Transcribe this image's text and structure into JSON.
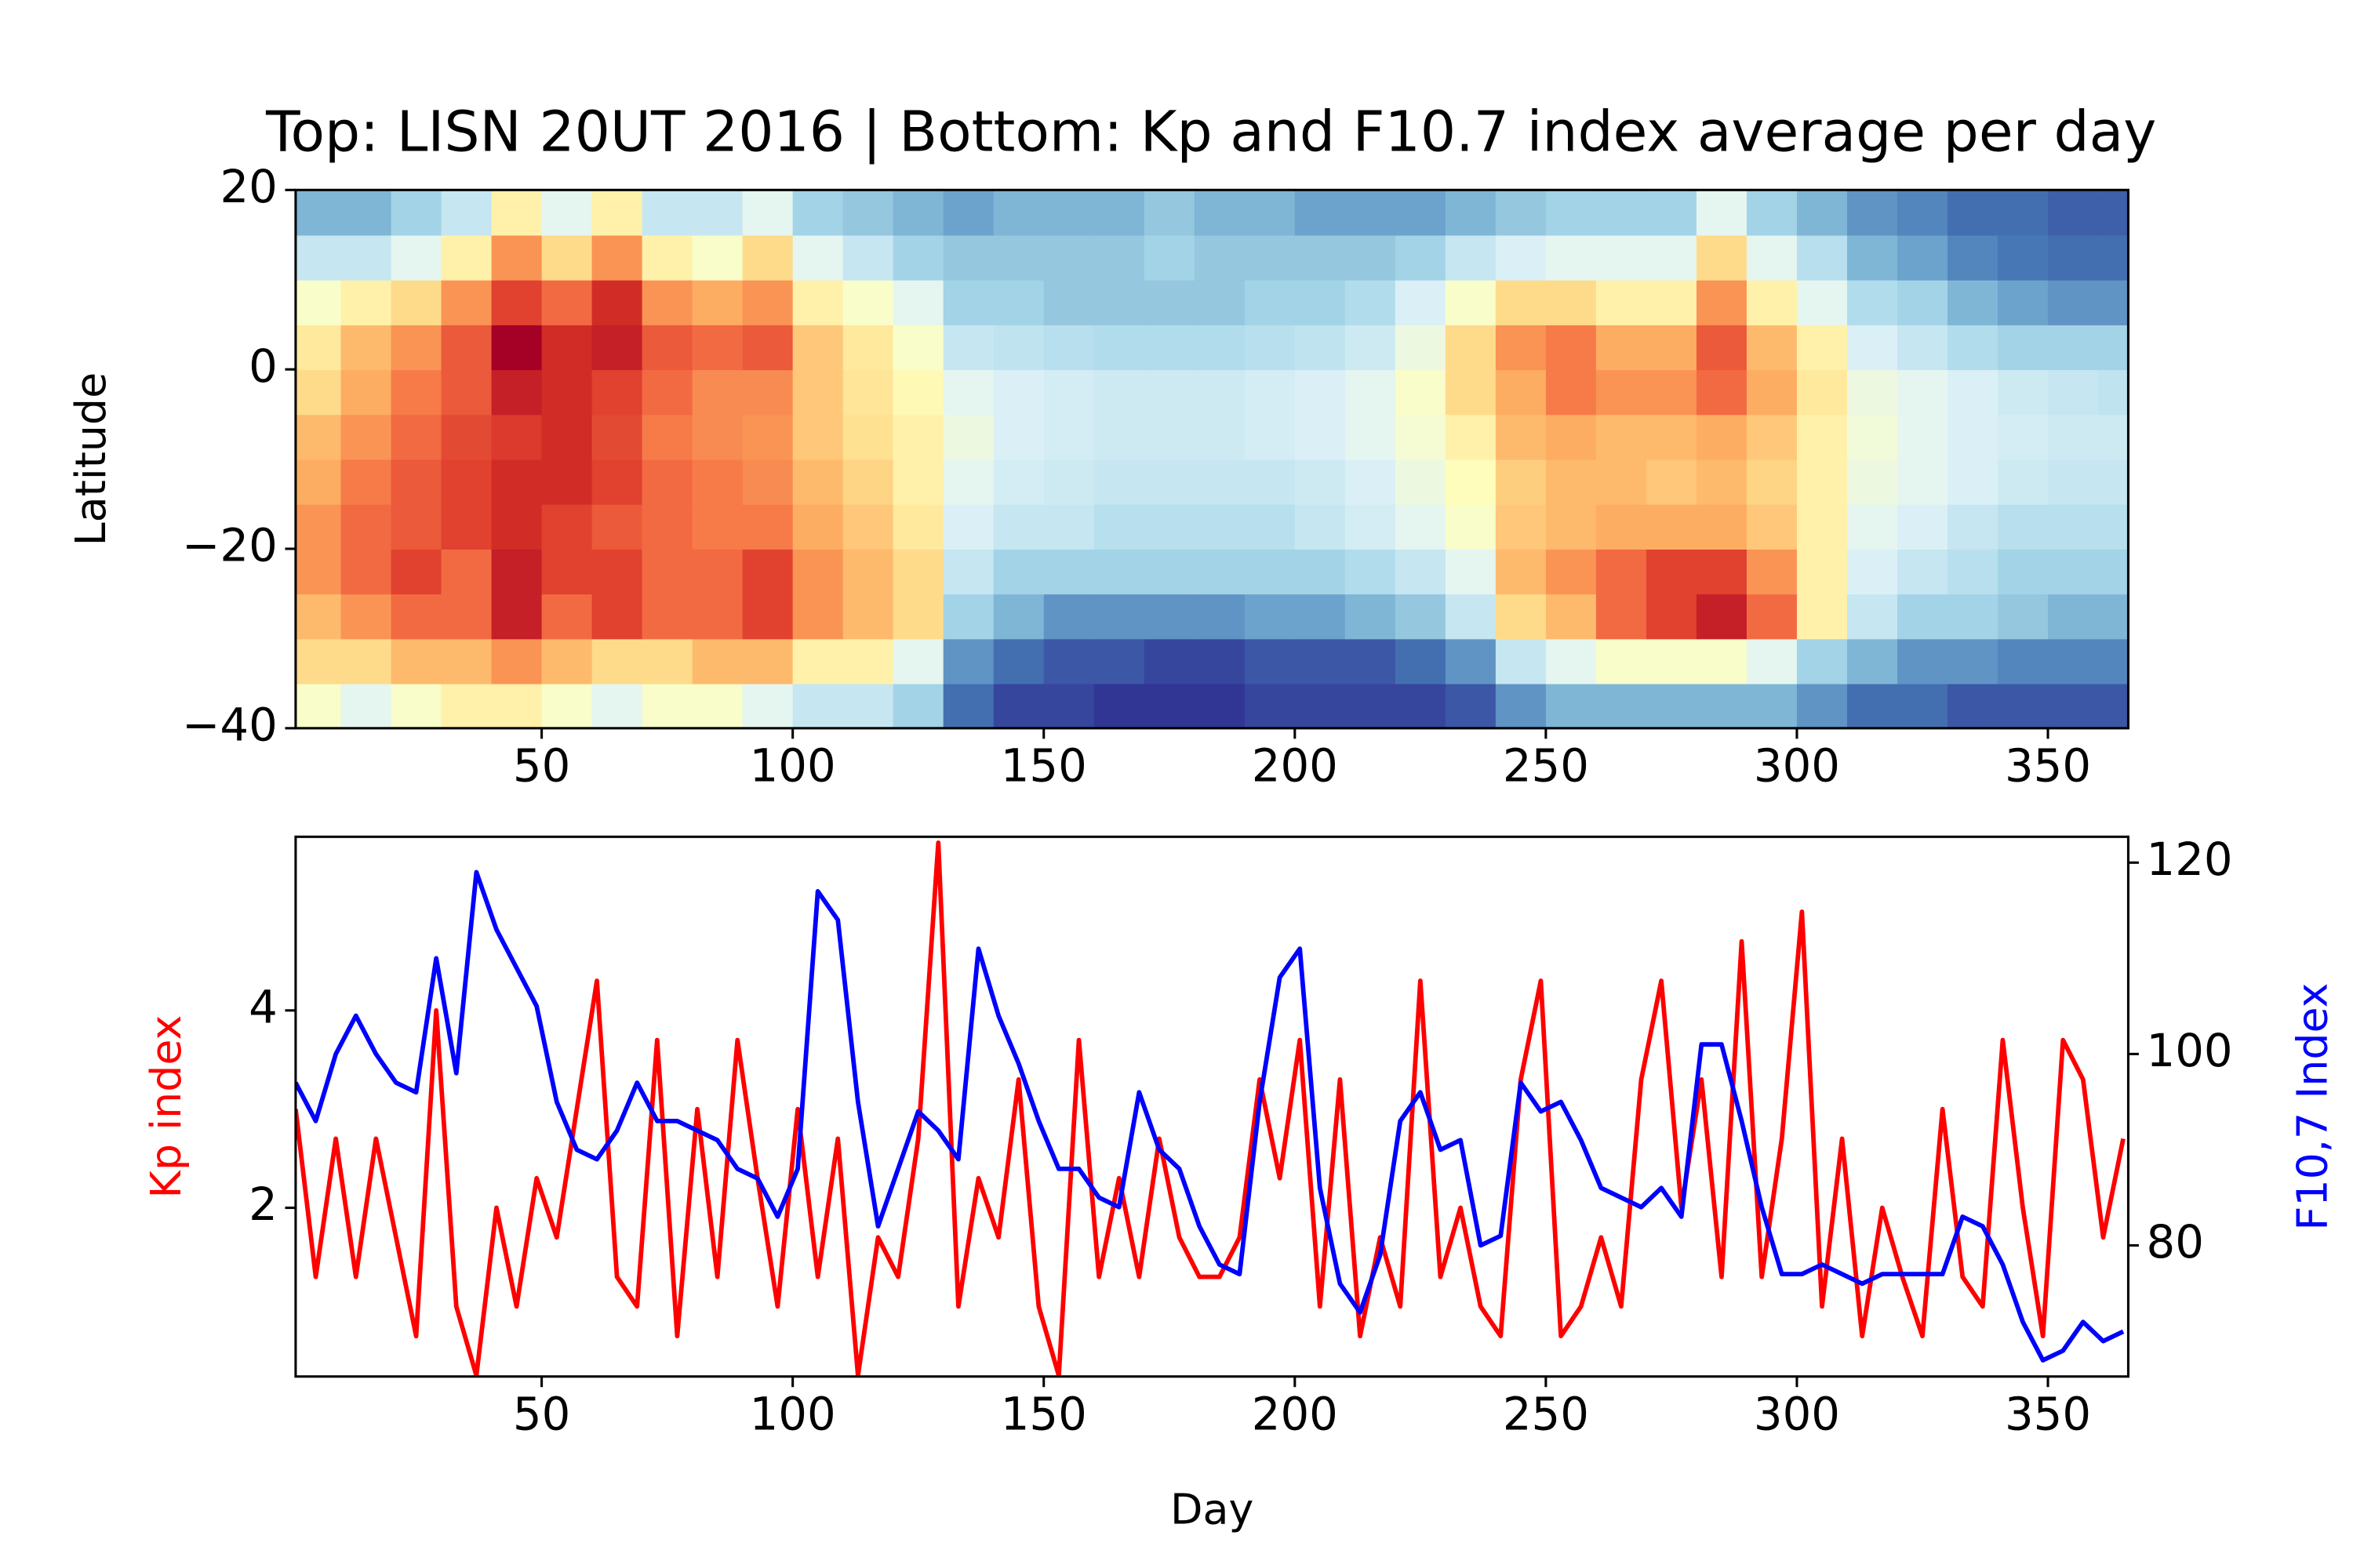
{
  "chart_data": [
    {
      "type": "heatmap",
      "title": "Top: LISN 20UT 2016 | Bottom: Kp and F10.7 index average per day",
      "y_label": "Latitude",
      "x": [
        5,
        15,
        25,
        35,
        45,
        55,
        65,
        75,
        85,
        95,
        105,
        115,
        125,
        135,
        145,
        155,
        165,
        175,
        185,
        195,
        205,
        215,
        225,
        235,
        245,
        255,
        265,
        275,
        285,
        295,
        305,
        315,
        325,
        335,
        345,
        355,
        365
      ],
      "y": [
        -37.5,
        -32.5,
        -27.5,
        -22.5,
        -17.5,
        -12.5,
        -7.5,
        -2.5,
        2.5,
        7.5,
        12.5,
        17.5
      ],
      "z": [
        [
          0.45,
          0.4,
          0.45,
          0.5,
          0.5,
          0.45,
          0.4,
          0.45,
          0.45,
          0.4,
          0.35,
          0.35,
          0.3,
          0.15,
          0.1,
          0.1,
          0.08,
          0.08,
          0.08,
          0.1,
          0.1,
          0.1,
          0.1,
          0.12,
          0.2,
          0.25,
          0.25,
          0.25,
          0.25,
          0.25,
          0.2,
          0.15,
          0.15,
          0.12,
          0.12,
          0.12,
          0.12
        ],
        [
          0.55,
          0.55,
          0.6,
          0.6,
          0.65,
          0.6,
          0.55,
          0.55,
          0.6,
          0.6,
          0.5,
          0.5,
          0.4,
          0.2,
          0.15,
          0.12,
          0.12,
          0.1,
          0.1,
          0.12,
          0.12,
          0.12,
          0.15,
          0.2,
          0.35,
          0.4,
          0.45,
          0.45,
          0.45,
          0.4,
          0.3,
          0.25,
          0.2,
          0.2,
          0.18,
          0.18,
          0.18
        ],
        [
          0.6,
          0.65,
          0.7,
          0.7,
          0.8,
          0.7,
          0.75,
          0.7,
          0.7,
          0.75,
          0.65,
          0.6,
          0.55,
          0.3,
          0.25,
          0.2,
          0.2,
          0.2,
          0.2,
          0.22,
          0.22,
          0.25,
          0.28,
          0.35,
          0.55,
          0.6,
          0.7,
          0.75,
          0.8,
          0.7,
          0.5,
          0.35,
          0.3,
          0.3,
          0.28,
          0.25,
          0.25
        ],
        [
          0.65,
          0.7,
          0.75,
          0.7,
          0.8,
          0.75,
          0.75,
          0.7,
          0.7,
          0.75,
          0.65,
          0.6,
          0.55,
          0.35,
          0.3,
          0.3,
          0.3,
          0.3,
          0.3,
          0.3,
          0.3,
          0.32,
          0.35,
          0.4,
          0.6,
          0.65,
          0.7,
          0.75,
          0.75,
          0.65,
          0.5,
          0.38,
          0.35,
          0.33,
          0.3,
          0.3,
          0.3
        ],
        [
          0.65,
          0.7,
          0.72,
          0.75,
          0.78,
          0.75,
          0.72,
          0.7,
          0.68,
          0.68,
          0.62,
          0.58,
          0.52,
          0.38,
          0.35,
          0.35,
          0.33,
          0.33,
          0.33,
          0.33,
          0.35,
          0.37,
          0.4,
          0.45,
          0.58,
          0.6,
          0.62,
          0.62,
          0.62,
          0.58,
          0.5,
          0.4,
          0.38,
          0.35,
          0.33,
          0.33,
          0.33
        ],
        [
          0.62,
          0.68,
          0.72,
          0.75,
          0.78,
          0.78,
          0.75,
          0.7,
          0.68,
          0.66,
          0.6,
          0.56,
          0.5,
          0.4,
          0.37,
          0.36,
          0.35,
          0.35,
          0.35,
          0.35,
          0.36,
          0.38,
          0.42,
          0.47,
          0.57,
          0.6,
          0.6,
          0.58,
          0.6,
          0.56,
          0.5,
          0.42,
          0.4,
          0.38,
          0.36,
          0.35,
          0.35
        ],
        [
          0.6,
          0.65,
          0.7,
          0.74,
          0.76,
          0.78,
          0.74,
          0.68,
          0.66,
          0.65,
          0.58,
          0.54,
          0.5,
          0.42,
          0.38,
          0.37,
          0.36,
          0.36,
          0.36,
          0.37,
          0.38,
          0.4,
          0.44,
          0.5,
          0.6,
          0.62,
          0.6,
          0.6,
          0.62,
          0.58,
          0.5,
          0.43,
          0.4,
          0.38,
          0.37,
          0.36,
          0.36
        ],
        [
          0.55,
          0.62,
          0.68,
          0.72,
          0.8,
          0.78,
          0.75,
          0.7,
          0.66,
          0.66,
          0.58,
          0.53,
          0.48,
          0.4,
          0.38,
          0.37,
          0.36,
          0.36,
          0.36,
          0.37,
          0.38,
          0.4,
          0.45,
          0.55,
          0.62,
          0.68,
          0.65,
          0.65,
          0.7,
          0.62,
          0.52,
          0.42,
          0.4,
          0.38,
          0.36,
          0.35,
          0.34
        ],
        [
          0.52,
          0.6,
          0.65,
          0.72,
          0.85,
          0.78,
          0.8,
          0.72,
          0.7,
          0.72,
          0.58,
          0.52,
          0.45,
          0.35,
          0.34,
          0.33,
          0.32,
          0.32,
          0.32,
          0.33,
          0.34,
          0.36,
          0.42,
          0.55,
          0.65,
          0.68,
          0.62,
          0.62,
          0.72,
          0.6,
          0.5,
          0.38,
          0.35,
          0.32,
          0.3,
          0.3,
          0.3
        ],
        [
          0.45,
          0.5,
          0.55,
          0.65,
          0.75,
          0.7,
          0.78,
          0.65,
          0.62,
          0.65,
          0.5,
          0.45,
          0.4,
          0.3,
          0.3,
          0.28,
          0.28,
          0.28,
          0.28,
          0.3,
          0.3,
          0.32,
          0.38,
          0.45,
          0.55,
          0.55,
          0.5,
          0.5,
          0.65,
          0.5,
          0.4,
          0.32,
          0.3,
          0.25,
          0.22,
          0.2,
          0.2
        ],
        [
          0.35,
          0.35,
          0.4,
          0.5,
          0.65,
          0.55,
          0.65,
          0.5,
          0.45,
          0.55,
          0.4,
          0.35,
          0.3,
          0.28,
          0.28,
          0.28,
          0.28,
          0.3,
          0.28,
          0.28,
          0.28,
          0.28,
          0.3,
          0.35,
          0.38,
          0.4,
          0.4,
          0.4,
          0.55,
          0.4,
          0.33,
          0.25,
          0.22,
          0.18,
          0.16,
          0.15,
          0.15
        ],
        [
          0.25,
          0.25,
          0.3,
          0.35,
          0.5,
          0.4,
          0.5,
          0.35,
          0.35,
          0.4,
          0.3,
          0.28,
          0.25,
          0.22,
          0.25,
          0.25,
          0.25,
          0.28,
          0.25,
          0.25,
          0.22,
          0.22,
          0.22,
          0.25,
          0.28,
          0.3,
          0.3,
          0.3,
          0.4,
          0.3,
          0.25,
          0.2,
          0.18,
          0.15,
          0.15,
          0.13,
          0.13
        ]
      ],
      "colormap": [
        "#313695",
        "#4575b4",
        "#74add1",
        "#abd9e9",
        "#e0f3f8",
        "#ffffbf",
        "#fee090",
        "#fdae61",
        "#f46d43",
        "#d73027",
        "#a50026"
      ],
      "xlim": [
        1,
        366
      ],
      "ylim": [
        -40,
        20
      ],
      "xticks": [
        50,
        100,
        150,
        200,
        250,
        300,
        350
      ],
      "yticks": [
        {
          "value": -40,
          "label": "−40"
        },
        {
          "value": -20,
          "label": "−20"
        },
        0,
        20
      ]
    },
    {
      "type": "line",
      "x_label": "Day",
      "y_label": "Kp index",
      "y2_label": "F10,7 Index",
      "y_label_color": "#ff0000",
      "y2_label_color": "#0000ff",
      "x": [
        1,
        5,
        9,
        13,
        17,
        21,
        25,
        29,
        33,
        37,
        41,
        45,
        49,
        53,
        57,
        61,
        65,
        69,
        73,
        77,
        81,
        85,
        89,
        93,
        97,
        101,
        105,
        109,
        113,
        117,
        121,
        125,
        129,
        133,
        137,
        141,
        145,
        149,
        153,
        157,
        161,
        165,
        169,
        173,
        177,
        181,
        185,
        189,
        193,
        197,
        201,
        205,
        209,
        213,
        217,
        221,
        225,
        229,
        233,
        237,
        241,
        245,
        249,
        253,
        257,
        261,
        265,
        269,
        273,
        277,
        281,
        285,
        289,
        293,
        297,
        301,
        305,
        309,
        313,
        317,
        321,
        325,
        329,
        333,
        337,
        341,
        345,
        349,
        353,
        357,
        361,
        365
      ],
      "series": [
        {
          "color": "#ff0000",
          "axis": "y",
          "values": [
            3.0,
            1.3,
            2.7,
            1.3,
            2.7,
            1.7,
            0.7,
            4.0,
            1.0,
            0.3,
            2.0,
            1.0,
            2.3,
            1.7,
            3.0,
            4.3,
            1.3,
            1.0,
            3.7,
            0.7,
            3.0,
            1.3,
            3.7,
            2.3,
            1.0,
            3.0,
            1.3,
            2.7,
            0.3,
            1.7,
            1.3,
            2.7,
            5.7,
            1.0,
            2.3,
            1.7,
            3.3,
            1.0,
            0.3,
            3.7,
            1.3,
            2.3,
            1.3,
            2.7,
            1.7,
            1.3,
            1.3,
            1.7,
            3.3,
            2.3,
            3.7,
            1.0,
            3.3,
            0.7,
            1.7,
            1.0,
            4.3,
            1.3,
            2.0,
            1.0,
            0.7,
            3.3,
            4.3,
            0.7,
            1.0,
            1.7,
            1.0,
            3.3,
            4.3,
            2.0,
            3.3,
            1.3,
            4.7,
            1.3,
            2.7,
            5.0,
            1.0,
            2.7,
            0.7,
            2.0,
            1.3,
            0.7,
            3.0,
            1.3,
            1.0,
            3.7,
            2.0,
            0.7,
            3.7,
            3.3,
            1.7,
            2.7
          ]
        },
        {
          "color": "#0000ff",
          "axis": "y2",
          "values": [
            97,
            93,
            100,
            104,
            100,
            97,
            96,
            110,
            98,
            119,
            113,
            109,
            105,
            95,
            90,
            89,
            92,
            97,
            93,
            93,
            92,
            91,
            88,
            87,
            83,
            88,
            117,
            114,
            95,
            82,
            88,
            94,
            92,
            89,
            111,
            104,
            99,
            93,
            88,
            88,
            85,
            84,
            96,
            90,
            88,
            82,
            78,
            77,
            95,
            108,
            111,
            86,
            76,
            73,
            79,
            93,
            96,
            90,
            91,
            80,
            81,
            97,
            94,
            95,
            91,
            86,
            85,
            84,
            86,
            83,
            101,
            101,
            93,
            84,
            77,
            77,
            78,
            77,
            76,
            77,
            77,
            77,
            77,
            83,
            82,
            78,
            72,
            68,
            69,
            72,
            70,
            71
          ]
        }
      ],
      "xlim": [
        1,
        366
      ],
      "ylim": [
        0.29,
        5.76
      ],
      "y2lim": [
        66.3,
        122.7
      ],
      "xticks": [
        50,
        100,
        150,
        200,
        250,
        300,
        350
      ],
      "yticks": [
        2,
        4
      ],
      "y2ticks": [
        80,
        100,
        120
      ]
    }
  ]
}
